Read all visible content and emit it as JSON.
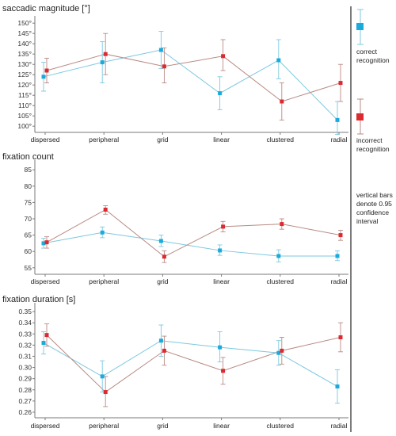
{
  "legend": {
    "correct_line1": "correct",
    "correct_line2": "recognition",
    "incorrect_line1": "incorrect",
    "incorrect_line2": "recognition",
    "note_line1": "vertical bars",
    "note_line2": "denote 0.95",
    "note_line3": "confidence",
    "note_line4": "interval"
  },
  "colors": {
    "correct_marker": "#1aabdc",
    "correct_line": "#7cc8df",
    "incorrect_marker": "#dc2a30",
    "incorrect_line": "#b98b85",
    "axis": "#7a7a7a",
    "divider": "#222222"
  },
  "chart_data": [
    {
      "type": "line",
      "title": "saccadic magnitude [°]",
      "categories": [
        "dispersed",
        "peripheral",
        "grid",
        "linear",
        "clustered",
        "radial"
      ],
      "ylim": [
        97,
        152
      ],
      "yticks": [
        "100°",
        "105°",
        "110°",
        "115°",
        "120°",
        "125°",
        "130°",
        "135°",
        "140°",
        "145°",
        "150°"
      ],
      "ytick_values": [
        100,
        105,
        110,
        115,
        120,
        125,
        130,
        135,
        140,
        145,
        150
      ],
      "series": [
        {
          "key": "correct",
          "values": [
            124,
            131,
            137,
            116,
            132,
            103
          ],
          "ci_low": [
            117,
            121,
            128,
            108,
            123,
            96
          ],
          "ci_high": [
            131,
            141,
            146,
            124,
            142,
            112
          ]
        },
        {
          "key": "incorrect",
          "values": [
            127,
            135,
            129,
            134,
            112,
            121
          ],
          "ci_low": [
            121,
            125,
            121,
            127,
            103,
            112
          ],
          "ci_high": [
            133,
            145,
            138,
            142,
            121,
            130
          ]
        }
      ]
    },
    {
      "type": "line",
      "title": "fixation count",
      "categories": [
        "dispersed",
        "peripheral",
        "grid",
        "linear",
        "clustered",
        "radial"
      ],
      "ylim": [
        53,
        87
      ],
      "yticks": [
        "55",
        "60",
        "65",
        "70",
        "75",
        "80",
        "85"
      ],
      "ytick_values": [
        55,
        60,
        65,
        70,
        75,
        80,
        85
      ],
      "series": [
        {
          "key": "correct",
          "values": [
            62.5,
            65.8,
            63.2,
            60.3,
            58.6,
            58.6
          ],
          "ci_low": [
            61,
            64.2,
            61.5,
            58.8,
            56.8,
            57.2
          ],
          "ci_high": [
            64,
            67.5,
            65,
            62,
            60.5,
            60.2
          ]
        },
        {
          "key": "incorrect",
          "values": [
            62.8,
            72.8,
            58.4,
            67.6,
            68.4,
            65
          ],
          "ci_low": [
            61,
            71.4,
            56.6,
            66,
            66.8,
            63.4
          ],
          "ci_high": [
            64.5,
            74,
            60.2,
            69.2,
            70,
            66.5
          ]
        }
      ]
    },
    {
      "type": "line",
      "title": "fixation duration [s]",
      "categories": [
        "dispersed",
        "peripheral",
        "grid",
        "linear",
        "clustered",
        "radial"
      ],
      "ylim": [
        0.255,
        0.355
      ],
      "yticks": [
        "0.26",
        "0.27",
        "0.28",
        "0.29",
        "0.30",
        "0.31",
        "0.32",
        "0.33",
        "0.34",
        "0.35"
      ],
      "ytick_values": [
        0.26,
        0.27,
        0.28,
        0.29,
        0.3,
        0.31,
        0.32,
        0.33,
        0.34,
        0.35
      ],
      "series": [
        {
          "key": "correct",
          "values": [
            0.322,
            0.292,
            0.324,
            0.318,
            0.313,
            0.283
          ],
          "ci_low": [
            0.312,
            0.278,
            0.31,
            0.305,
            0.302,
            0.268
          ],
          "ci_high": [
            0.332,
            0.306,
            0.338,
            0.332,
            0.324,
            0.298
          ]
        },
        {
          "key": "incorrect",
          "values": [
            0.329,
            0.278,
            0.315,
            0.297,
            0.315,
            0.327
          ],
          "ci_low": [
            0.319,
            0.265,
            0.302,
            0.285,
            0.303,
            0.314
          ],
          "ci_high": [
            0.339,
            0.292,
            0.328,
            0.309,
            0.327,
            0.34
          ]
        }
      ]
    }
  ]
}
